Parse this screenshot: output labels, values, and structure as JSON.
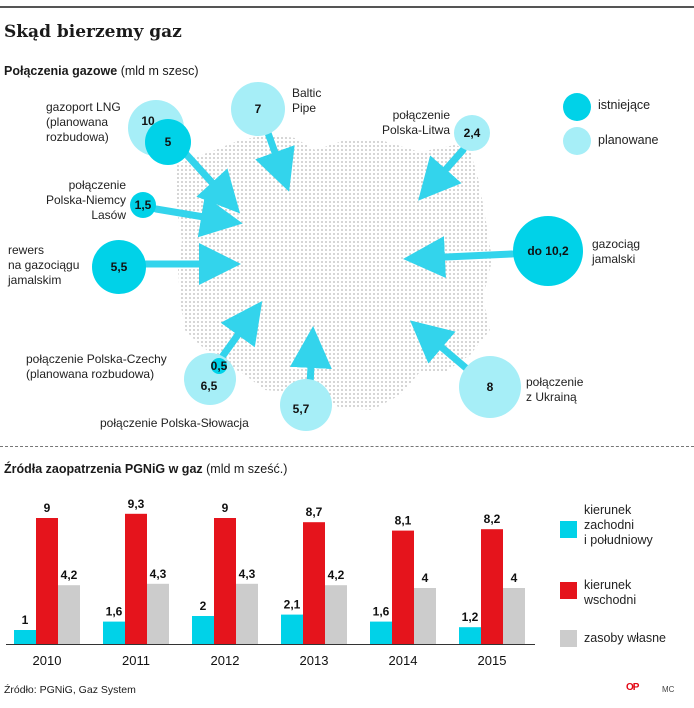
{
  "title": "Skąd bierzemy gaz",
  "map_section": {
    "heading_bold": "Połączenia gazowe",
    "heading_unit": " (mld m szesc)",
    "legend": [
      {
        "label": "istniejące",
        "color": "#00d2e8"
      },
      {
        "label": "planowane",
        "color": "#a6eef7"
      }
    ],
    "connections": [
      {
        "id": "lng",
        "label_lines": [
          "gazoport LNG",
          "(planowana",
          "rozbudowa)"
        ],
        "values": [
          "10",
          "5"
        ],
        "kinds": [
          "planned",
          "existing"
        ]
      },
      {
        "id": "baltic",
        "label_lines": [
          "Baltic",
          "Pipe"
        ],
        "values": [
          "7"
        ],
        "kinds": [
          "planned"
        ]
      },
      {
        "id": "litwa",
        "label_lines": [
          "połączenie",
          "Polska-Litwa"
        ],
        "values": [
          "2,4"
        ],
        "kinds": [
          "planned"
        ]
      },
      {
        "id": "lasow",
        "label_lines": [
          "połączenie",
          "Polska-Niemcy",
          "Lasów"
        ],
        "values": [
          "1,5"
        ],
        "kinds": [
          "existing"
        ]
      },
      {
        "id": "rewers",
        "label_lines": [
          "rewers",
          "na gazociągu",
          "jamalskim"
        ],
        "values": [
          "5,5"
        ],
        "kinds": [
          "existing"
        ]
      },
      {
        "id": "jamal",
        "label_lines": [
          "gazociąg",
          "jamalski"
        ],
        "values": [
          "do 10,2"
        ],
        "kinds": [
          "existing"
        ]
      },
      {
        "id": "czechy",
        "label_lines": [
          "połączenie Polska-Czechy",
          "(planowana rozbudowa)"
        ],
        "values": [
          "0,5",
          "6,5"
        ],
        "kinds": [
          "existing",
          "planned"
        ]
      },
      {
        "id": "slowacja",
        "label_lines": [
          "połączenie Polska-Słowacja"
        ],
        "values": [
          "5,7"
        ],
        "kinds": [
          "planned"
        ]
      },
      {
        "id": "ukraina",
        "label_lines": [
          "połączenie",
          "z Ukrainą"
        ],
        "values": [
          "8"
        ],
        "kinds": [
          "planned"
        ]
      }
    ]
  },
  "chart_section": {
    "heading_bold": "Źródła zaopatrzenia PGNiG w gaz",
    "heading_unit": " (mld m sześć.)"
  },
  "chart_data": {
    "type": "bar",
    "title": "Źródła zaopatrzenia PGNiG w gaz",
    "unit": "mld m sześć.",
    "categories": [
      "2010",
      "2011",
      "2012",
      "2013",
      "2014",
      "2015"
    ],
    "series": [
      {
        "name": "kierunek zachodni i południowy",
        "color": "#00d2e8",
        "values": [
          1,
          1.6,
          2,
          2.1,
          1.6,
          1.2
        ],
        "labels": [
          "1",
          "1,6",
          "2",
          "2,1",
          "1,6",
          "1,2"
        ]
      },
      {
        "name": "kierunek wschodni",
        "color": "#e5141c",
        "values": [
          9,
          9.3,
          9,
          8.7,
          8.1,
          8.2
        ],
        "labels": [
          "9",
          "9,3",
          "9",
          "8,7",
          "8,1",
          "8,2"
        ]
      },
      {
        "name": "zasoby własne",
        "color": "#cccccc",
        "values": [
          4.2,
          4.3,
          4.3,
          4.2,
          4,
          4
        ],
        "labels": [
          "4,2",
          "4,3",
          "4,3",
          "4,2",
          "4",
          "4"
        ]
      }
    ],
    "legend_lines": [
      [
        "kierunek",
        "zachodni",
        "i południowy"
      ],
      [
        "kierunek",
        "wschodni"
      ],
      [
        "zasoby własne"
      ]
    ],
    "ylim": [
      0,
      10
    ],
    "grid": false,
    "legend_position": "right"
  },
  "source": "Źródło: PGNiG, Gaz System",
  "logo_text": "OP",
  "initials": "MC"
}
